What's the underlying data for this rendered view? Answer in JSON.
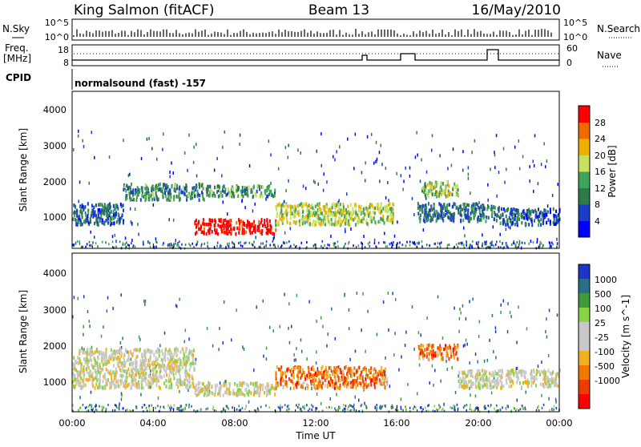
{
  "header": {
    "station": "King Salmon (fitACF)",
    "beam": "Beam 13",
    "date": "16/May/2010"
  },
  "strips": {
    "nsky_label": "N.Sky",
    "nsky_ticks": [
      "10^5",
      "10^0"
    ],
    "nsearch_label": "N.Search",
    "nsearch_ticks": [
      "10^5",
      "10^0"
    ],
    "freq_label_1": "Freq.",
    "freq_label_2": "[MHz]",
    "freq_ticks": [
      "18",
      "8"
    ],
    "nave_label": "Nave",
    "nave_ticks": [
      "60",
      "0"
    ],
    "cpid_label": "CPID",
    "cpid_text": "normalsound (fast) -157"
  },
  "colors": {
    "power_scale": [
      "#0000ff",
      "#1a3cc8",
      "#2f7a4a",
      "#3fa35a",
      "#c8e060",
      "#f0b000",
      "#f06a00",
      "#ff0000"
    ],
    "velocity_scale": [
      "#1c36c8",
      "#2a6e8a",
      "#3f9a3f",
      "#8ad246",
      "#c8c8c8",
      "#c8c8c8",
      "#f0b020",
      "#f07800",
      "#f03a00",
      "#ff0000"
    ]
  },
  "chart_data": [
    {
      "type": "heatmap",
      "panel": "power",
      "ylabel": "Slant Range [km]",
      "yticks": [
        "1000",
        "2000",
        "3000",
        "4000"
      ],
      "ylim": [
        200,
        4600
      ],
      "xlim": [
        "00:00",
        "24:00"
      ],
      "colorbar_label": "Power [dB]",
      "colorbar_ticks": [
        "4",
        "8",
        "12",
        "16",
        "20",
        "24",
        "28"
      ],
      "regions": [
        {
          "t0": 0.0,
          "t1": 2.5,
          "r0": 900,
          "r1": 1500,
          "level": 0.25
        },
        {
          "t0": 2.5,
          "t1": 6.5,
          "r0": 1600,
          "r1": 2050,
          "level": 0.35
        },
        {
          "t0": 6.5,
          "t1": 10.0,
          "r0": 1700,
          "r1": 2000,
          "level": 0.4
        },
        {
          "t0": 6.0,
          "t1": 10.0,
          "r0": 650,
          "r1": 1050,
          "level": 1.0
        },
        {
          "t0": 10.0,
          "t1": 15.8,
          "r0": 900,
          "r1": 1500,
          "level": 0.55
        },
        {
          "t0": 17.2,
          "t1": 19.0,
          "r0": 1700,
          "r1": 2100,
          "level": 0.5
        },
        {
          "t0": 17.0,
          "t1": 21.0,
          "r0": 1000,
          "r1": 1500,
          "level": 0.3
        },
        {
          "t0": 21.0,
          "t1": 24.0,
          "r0": 900,
          "r1": 1350,
          "level": 0.25
        }
      ]
    },
    {
      "type": "heatmap",
      "panel": "velocity",
      "ylabel": "Slant Range [km]",
      "yticks": [
        "1000",
        "2000",
        "3000",
        "4000"
      ],
      "ylim": [
        200,
        4600
      ],
      "xlim": [
        "00:00",
        "24:00"
      ],
      "xlabel": "Time UT",
      "xticks": [
        "00:00",
        "04:00",
        "08:00",
        "12:00",
        "16:00",
        "20:00",
        "00:00"
      ],
      "colorbar_label": "Velocity [m s^-1]",
      "colorbar_ticks": [
        "1000",
        "500",
        "100",
        "25",
        "-25",
        "-100",
        "-500",
        "-1000"
      ],
      "regions": [
        {
          "t0": 0.0,
          "t1": 6.0,
          "r0": 900,
          "r1": 2000,
          "level": 0.5
        },
        {
          "t0": 6.0,
          "t1": 10.0,
          "r0": 700,
          "r1": 1050,
          "level": 0.5
        },
        {
          "t0": 10.0,
          "t1": 15.5,
          "r0": 900,
          "r1": 1500,
          "level": 0.75
        },
        {
          "t0": 17.0,
          "t1": 19.0,
          "r0": 1700,
          "r1": 2100,
          "level": 0.75
        },
        {
          "t0": 19.0,
          "t1": 24.0,
          "r0": 900,
          "r1": 1400,
          "level": 0.5
        }
      ]
    }
  ]
}
